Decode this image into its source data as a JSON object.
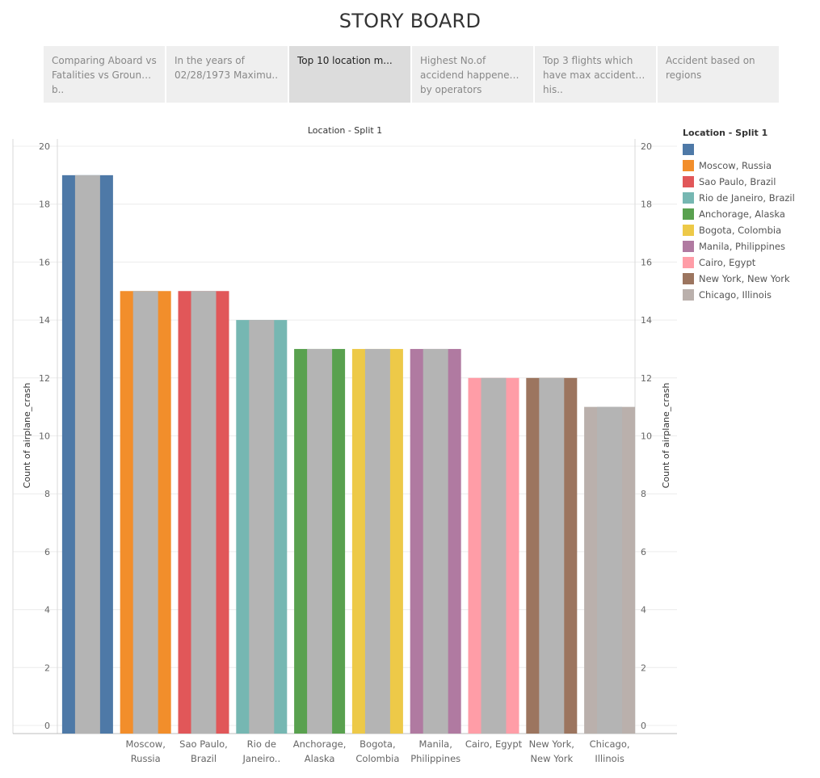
{
  "page": {
    "title": "STORY BOARD"
  },
  "tabs": [
    {
      "label": "Comparing Aboard vs Fatalities vs Ground b..",
      "active": false
    },
    {
      "label": "In the years of 02/28/1973 Maximu..",
      "active": false
    },
    {
      "label": "Top 10 location m...",
      "active": true
    },
    {
      "label": "Highest No.of accidend happened by operators",
      "active": false
    },
    {
      "label": "Top 3 flights which have max accident his..",
      "active": false
    },
    {
      "label": "Accident based on regions",
      "active": false
    }
  ],
  "chart_data": {
    "type": "bar",
    "title": "Location - Split 1",
    "ylabel": "Count of airplane_crash",
    "ylabel_right": "Count of airplane_crash",
    "ylim": [
      0,
      20
    ],
    "yticks": [
      0,
      2,
      4,
      6,
      8,
      10,
      12,
      14,
      16,
      18,
      20
    ],
    "categories": [
      "",
      "Moscow, Russia",
      "Sao Paulo, Brazil",
      "Rio de Janeiro, Brazil",
      "Anchorage, Alaska",
      "Bogota, Colombia",
      "Manila, Philippines",
      "Cairo, Egypt",
      "New York, New York",
      "Chicago, Illinois"
    ],
    "category_label_lines": [
      [
        ""
      ],
      [
        "Moscow,",
        "Russia"
      ],
      [
        "Sao Paulo,",
        "Brazil"
      ],
      [
        "Rio de",
        "Janeiro.."
      ],
      [
        "Anchorage,",
        "Alaska"
      ],
      [
        "Bogota,",
        "Colombia"
      ],
      [
        "Manila,",
        "Philippines"
      ],
      [
        "Cairo, Egypt"
      ],
      [
        "New York,",
        "New York"
      ],
      [
        "Chicago,",
        "Illinois"
      ]
    ],
    "values": [
      19,
      15,
      15,
      14,
      13,
      13,
      13,
      12,
      12,
      11
    ],
    "colors": [
      "#4e79a7",
      "#f28e2b",
      "#e15759",
      "#76b7b2",
      "#59a14f",
      "#edc948",
      "#b07aa1",
      "#ff9da7",
      "#9c755f",
      "#bab0ac"
    ],
    "overlay_color": "#b4b4b4",
    "legend": {
      "title": "Location - Split 1",
      "position": "right"
    },
    "grid": true
  }
}
